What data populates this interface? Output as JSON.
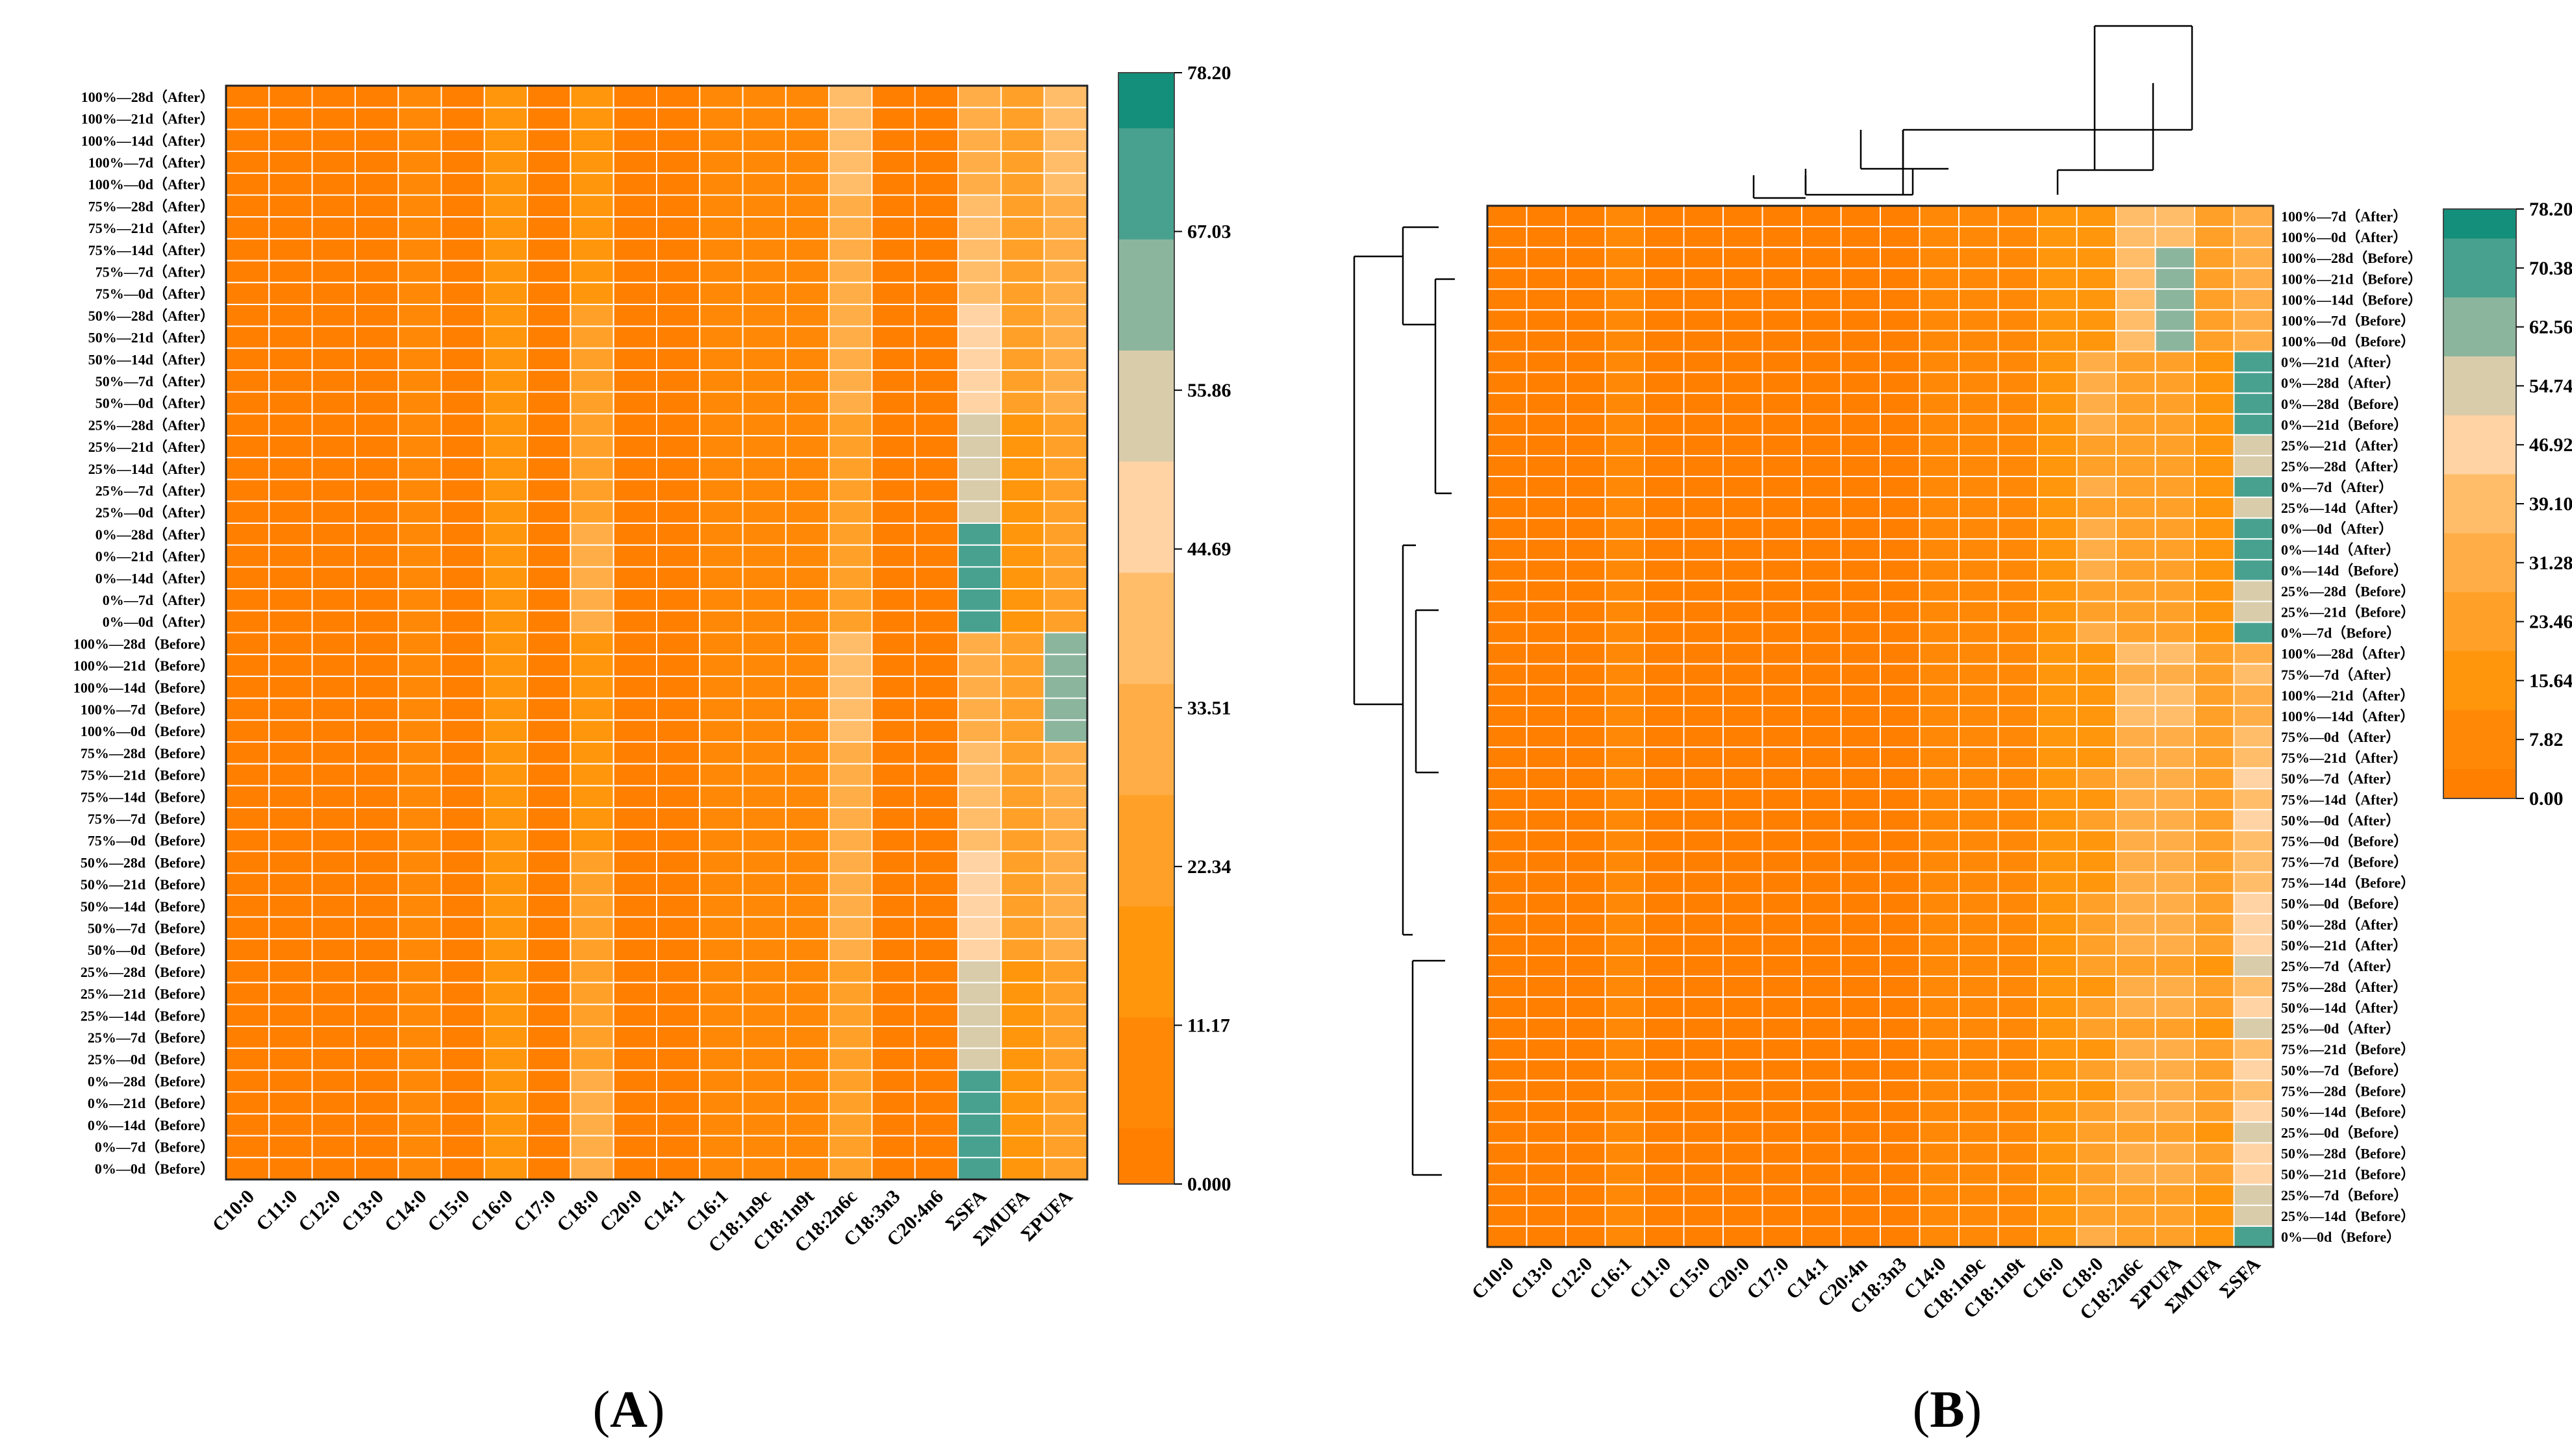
{
  "chart_data": [
    {
      "type": "heatmap",
      "panel_label": "A",
      "columns": [
        "C10:0",
        "C11:0",
        "C12:0",
        "C13:0",
        "C14:0",
        "C15:0",
        "C16:0",
        "C17:0",
        "C18:0",
        "C20:0",
        "C14:1",
        "C16:1",
        "C18:1n9c",
        "C18:1n9t",
        "C18:2n6c",
        "C18:3n3",
        "C20:4n6",
        "ΣSFA",
        "ΣMUFA",
        "ΣPUFA"
      ],
      "rows": [
        "100%—28d（After）",
        "100%—21d（After）",
        "100%—14d（After）",
        "100%—7d（After）",
        "100%—0d（After）",
        "75%—28d（After）",
        "75%—21d（After）",
        "75%—14d（After）",
        "75%—7d（After）",
        "75%—0d（After）",
        "50%—28d（After）",
        "50%—21d（After）",
        "50%—14d（After）",
        "50%—7d（After）",
        "50%—0d（After）",
        "25%—28d（After）",
        "25%—21d（After）",
        "25%—14d（After）",
        "25%—7d（After）",
        "25%—0d（After）",
        "0%—28d（After）",
        "0%—21d（After）",
        "0%—14d（After）",
        "0%—7d（After）",
        "0%—0d（After）",
        "100%—28d（Before）",
        "100%—21d（Before）",
        "100%—14d（Before）",
        "100%—7d（Before）",
        "100%—0d（Before）",
        "75%—28d（Before）",
        "75%—21d（Before）",
        "75%—14d（Before）",
        "75%—7d（Before）",
        "75%—0d（Before）",
        "50%—28d（Before）",
        "50%—21d（Before）",
        "50%—14d（Before）",
        "50%—7d（Before）",
        "50%—0d（Before）",
        "25%—28d（Before）",
        "25%—21d（Before）",
        "25%—14d（Before）",
        "25%—7d（Before）",
        "25%—0d（Before）",
        "0%—28d（Before）",
        "0%—21d（Before）",
        "0%—14d（Before）",
        "0%—7d（Before）",
        "0%—0d（Before）"
      ],
      "legend_ticks": [
        "78.20",
        "67.03",
        "55.86",
        "44.69",
        "33.51",
        "22.34",
        "11.17",
        "0.000"
      ],
      "value_range": [
        0,
        78.2
      ]
    },
    {
      "type": "heatmap",
      "panel_label": "B",
      "columns": [
        "C10:0",
        "C13:0",
        "C12:0",
        "C16:1",
        "C11:0",
        "C15:0",
        "C20:0",
        "C17:0",
        "C14:1",
        "C20:4n",
        "C18:3n3",
        "C14:0",
        "C18:1n9c",
        "C18:1n9t",
        "C16:0",
        "C18:0",
        "C18:2n6c",
        "ΣPUFA",
        "ΣMUFA",
        "ΣSFA"
      ],
      "rows": [
        "100%—7d（After）",
        "100%—0d（After）",
        "100%—28d（Before）",
        "100%—21d（Before）",
        "100%—14d（Before）",
        "100%—7d（Before）",
        "100%—0d（Before）",
        "0%—21d（After）",
        "0%—28d（After）",
        "0%—28d（Before）",
        "0%—21d（Before）",
        "25%—21d（After）",
        "25%—28d（After）",
        "0%—7d（After）",
        "25%—14d（After）",
        "0%—0d（After）",
        "0%—14d（After）",
        "0%—14d（Before）",
        "25%—28d（Before）",
        "25%—21d（Before）",
        "0%—7d（Before）",
        "100%—28d（After）",
        "75%—7d（After）",
        "100%—21d（After）",
        "100%—14d（After）",
        "75%—0d（After）",
        "75%—21d（After）",
        "50%—7d（After）",
        "75%—14d（After）",
        "50%—0d（After）",
        "75%—0d（Before）",
        "75%—7d（Before）",
        "75%—14d（Before）",
        "50%—0d（Before）",
        "50%—28d（After）",
        "50%—21d（After）",
        "25%—7d（After）",
        "75%—28d（After）",
        "50%—14d（After）",
        "25%—0d（After）",
        "75%—21d（Before）",
        "50%—7d（Before）",
        "75%—28d（Before）",
        "50%—14d（Before）",
        "25%—0d（Before）",
        "50%—28d（Before）",
        "50%—21d（Before）",
        "25%—7d（Before）",
        "25%—14d（Before）",
        "0%—0d（Before）"
      ],
      "legend_ticks": [
        "78.20",
        "70.38",
        "62.56",
        "54.74",
        "46.92",
        "39.10",
        "31.28",
        "23.46",
        "15.64",
        "7.82",
        "0.00"
      ],
      "value_range": [
        0,
        78.2
      ],
      "dendrograms": {
        "rows": "left",
        "columns": "top"
      }
    }
  ],
  "colors": {
    "scale": [
      "#ff7f00",
      "#ff8906",
      "#ff960c",
      "#ffa129",
      "#ffae47",
      "#ffbd6a",
      "#ffd3a3",
      "#d9ccaa",
      "#8cb59d",
      "#48a18f",
      "#138f7b"
    ],
    "cell_border": "#ffffff"
  }
}
